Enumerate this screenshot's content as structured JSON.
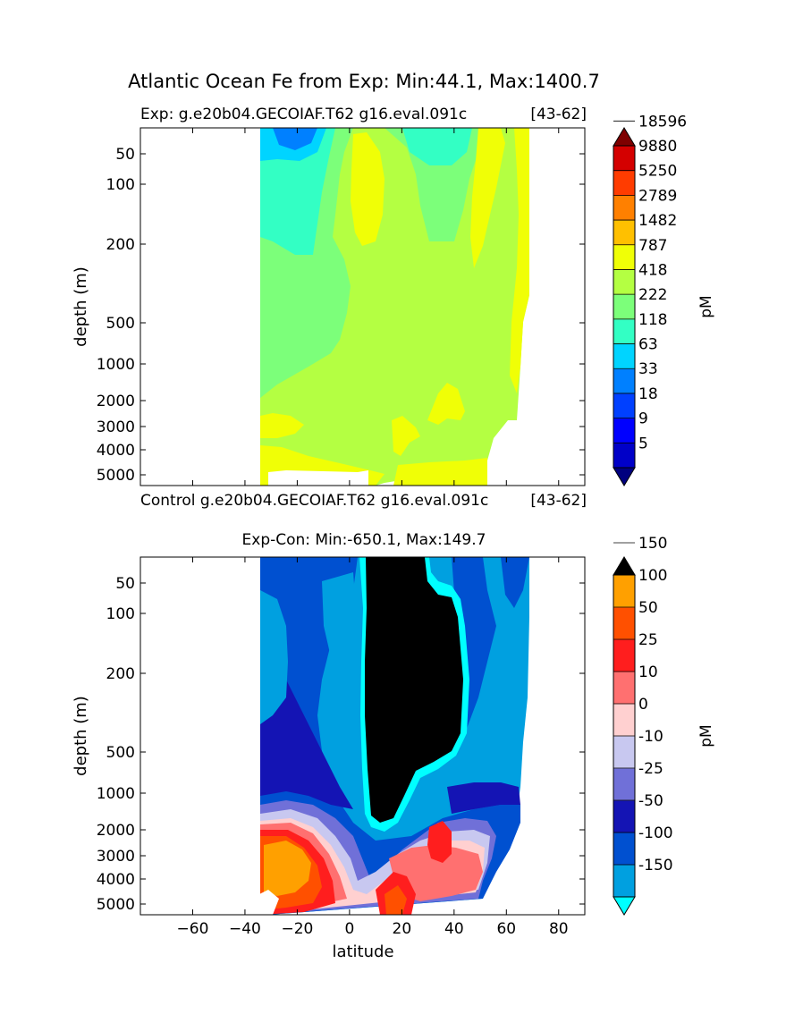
{
  "figure": {
    "suptitle": "Atlantic Ocean Fe from Exp: Min:44.1, Max:1400.7"
  },
  "chart_data": [
    {
      "type": "heatmap",
      "title_left": "Exp:    g.e20b04.GECOIAF.T62 g16.eval.091c",
      "title_right": "[43-62]",
      "ylabel": "depth (m)",
      "y_ticks": [
        50,
        100,
        200,
        500,
        1000,
        2000,
        3000,
        4000,
        5000
      ],
      "xlim": [
        -80,
        90
      ],
      "y_scale": "nonlinear (stretched), depth increasing downward",
      "data_extent_latitude": [
        -34,
        69
      ],
      "colorbar": {
        "label": "pM",
        "levels": [
          "5",
          "9",
          "18",
          "33",
          "63",
          "118",
          "222",
          "418",
          "787",
          "1482",
          "2789",
          "5250",
          "9880",
          "18596"
        ],
        "colors": [
          "#00007f",
          "#0000c8",
          "#0000ff",
          "#0040ff",
          "#0080ff",
          "#00d4ff",
          "#33ffc4",
          "#7cff7a",
          "#b4ff42",
          "#f0ff06",
          "#ffc000",
          "#ff8000",
          "#ff3c00",
          "#d40000",
          "#7f0000"
        ],
        "extend": "both"
      }
    },
    {
      "type": "heatmap",
      "title_left": "Control g.e20b04.GECOIAF.T62 g16.eval.091c",
      "title_right": "[43-62]",
      "title_center": "Exp-Con: Min:-650.1, Max:149.7",
      "xlabel": "latitude",
      "ylabel": "depth (m)",
      "x_ticks": [
        -60,
        -40,
        -20,
        0,
        20,
        40,
        60,
        80
      ],
      "y_ticks": [
        50,
        100,
        200,
        500,
        1000,
        2000,
        3000,
        4000,
        5000
      ],
      "xlim": [
        -80,
        90
      ],
      "data_extent_latitude": [
        -34,
        69
      ],
      "colorbar": {
        "label": "pM",
        "levels": [
          "-150",
          "-100",
          "-50",
          "-25",
          "-10",
          "0",
          "10",
          "25",
          "50",
          "100",
          "150"
        ],
        "colors": [
          "#00ffff",
          "#00a0e0",
          "#0050d0",
          "#1414b4",
          "#7070d8",
          "#c8c8f0",
          "#ffd0d0",
          "#ff7070",
          "#ff1e1e",
          "#ff5000",
          "#ffa000",
          "#ffff00"
        ],
        "extend": "both",
        "under_color": "#00ffff",
        "over_color": "#000000"
      }
    }
  ]
}
